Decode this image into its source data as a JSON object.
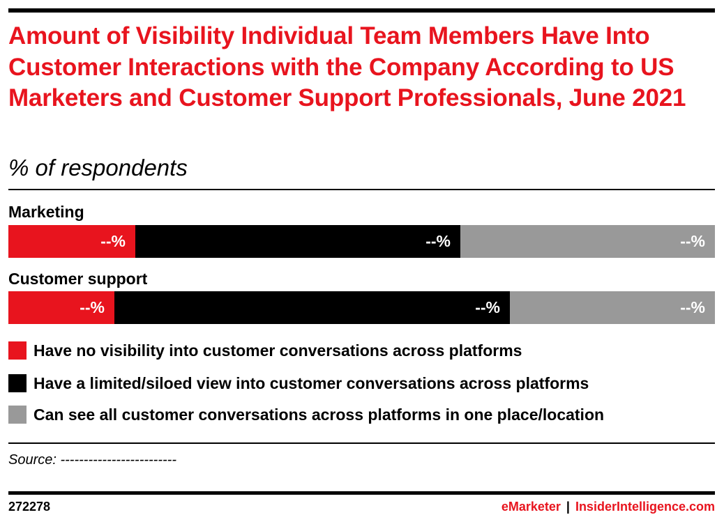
{
  "chart_data": {
    "type": "bar",
    "orientation": "horizontal",
    "stacked": true,
    "normalized": true,
    "title": "Amount of Visibility Individual Team Members Have Into Customer Interactions with the Company According to US Marketers and Customer Support Professionals, June 2021",
    "subtitle": "% of respondents",
    "categories": [
      "Marketing",
      "Customer support"
    ],
    "series": [
      {
        "name": "Have no visibility into customer conversations across platforms",
        "color": "#e8141e",
        "values": [
          18,
          15
        ],
        "labels": [
          "--%",
          "--%"
        ]
      },
      {
        "name": "Have a limited/siloed view into customer conversations across platforms",
        "color": "#000000",
        "values": [
          46,
          56
        ],
        "labels": [
          "--%",
          "--%"
        ]
      },
      {
        "name": "Can see all customer conversations across platforms in one place/location",
        "color": "#999999",
        "values": [
          36,
          29
        ],
        "labels": [
          "--%",
          "--%"
        ]
      }
    ],
    "legend_position": "bottom",
    "grid": false
  },
  "source": "Source: -------------------------",
  "footer": {
    "chart_id": "272278",
    "brand_left": "eMarketer",
    "brand_sep": "|",
    "brand_right": "InsiderIntelligence.com"
  }
}
